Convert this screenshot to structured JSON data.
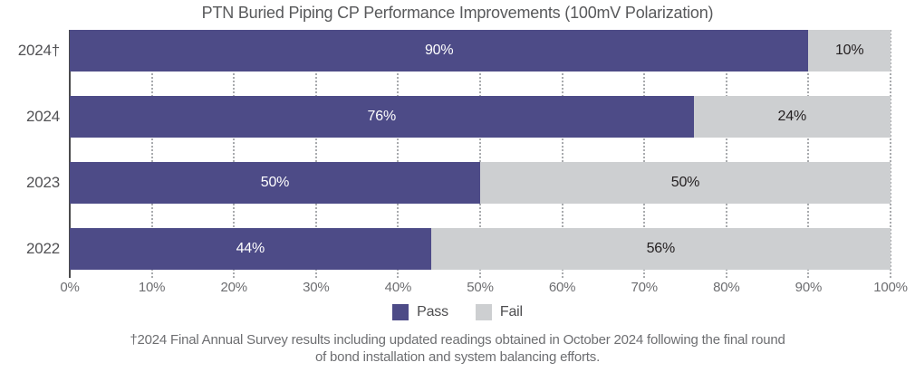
{
  "title": "PTN Buried Piping CP Performance Improvements (100mV Polarization)",
  "chart_data": {
    "type": "bar",
    "orientation": "horizontal",
    "stacked": true,
    "title": "PTN Buried Piping CP Performance Improvements (100mV Polarization)",
    "categories": [
      "2024†",
      "2024",
      "2023",
      "2022"
    ],
    "series": [
      {
        "name": "Pass",
        "color": "#4D4B87",
        "values": [
          90,
          76,
          50,
          44
        ]
      },
      {
        "name": "Fail",
        "color": "#CDCFD1",
        "values": [
          10,
          24,
          50,
          56
        ]
      }
    ],
    "value_suffix": "%",
    "xlim": [
      0,
      100
    ],
    "x_tick_labels": [
      "0%",
      "10%",
      "20%",
      "30%",
      "40%",
      "50%",
      "60%",
      "70%",
      "80%",
      "90%",
      "100%"
    ],
    "grid": "dotted-vertical",
    "legend_position": "bottom"
  },
  "legend": {
    "items": [
      {
        "label": "Pass",
        "color": "#4D4B87"
      },
      {
        "label": "Fail",
        "color": "#CDCFD1"
      }
    ]
  },
  "footnote": {
    "line1": "†2024 Final Annual Survey results including updated readings obtained in October 2024 following the final round",
    "line2": "of bond installation and system balancing efforts."
  },
  "colors": {
    "pass": "#4D4B87",
    "fail": "#CDCFD1",
    "title_text": "#58595B",
    "category_text": "#515154",
    "tick_text": "#6D6E71",
    "grid_dots": "#A9ABAE",
    "axis_line": "#4A4A4C",
    "value_on_pass": "#FFFFFF",
    "value_on_fail": "#231F20",
    "footnote_text": "#6D6E71"
  }
}
